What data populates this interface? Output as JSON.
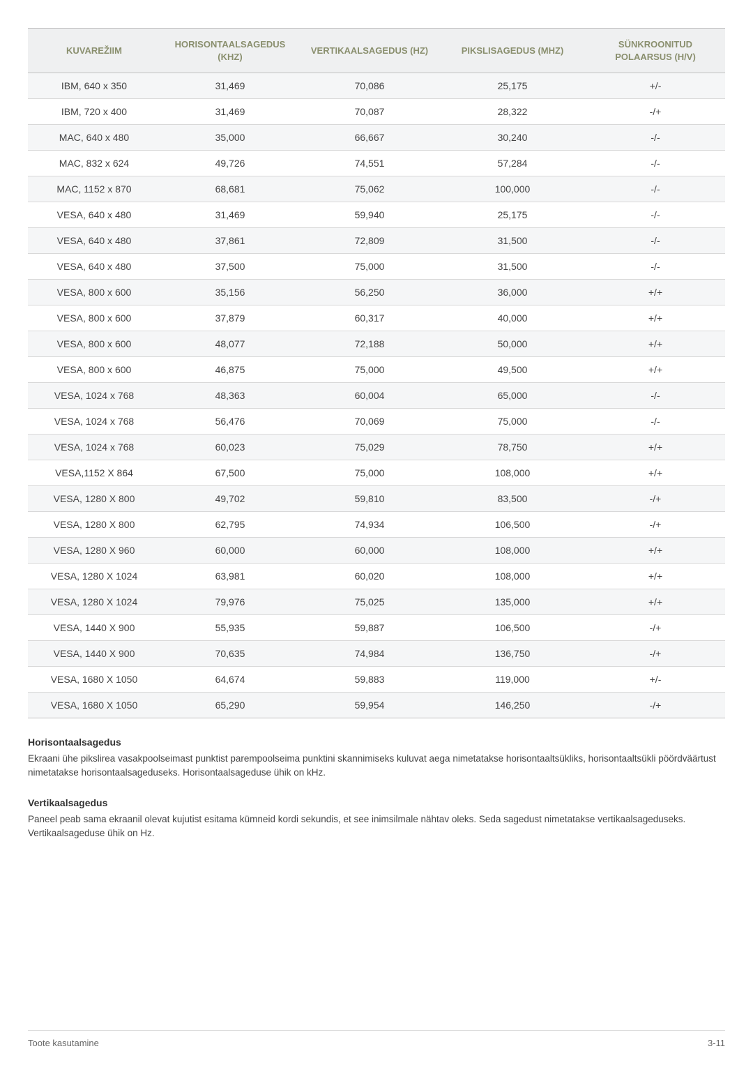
{
  "table": {
    "columns": [
      "KUVAREŽIIM",
      "HORISONTAALSAGEDUS (KHZ)",
      "VERTIKAALSAGEDUS (HZ)",
      "PIKSLISAGEDUS (MHZ)",
      "SÜNKROONITUD POLAARSUS (H/V)"
    ],
    "header_color": "#8a8f6e",
    "header_bg": "#eff0f1",
    "row_odd_bg": "#f5f6f7",
    "row_even_bg": "#ffffff",
    "border_color": "#d8d8d8",
    "text_color": "#444444",
    "fontsize_header": 13,
    "fontsize_cell": 14,
    "col_widths_pct": [
      19,
      20,
      20,
      21,
      20
    ],
    "rows": [
      [
        "IBM, 640 x 350",
        "31,469",
        "70,086",
        "25,175",
        "+/-"
      ],
      [
        "IBM, 720 x 400",
        "31,469",
        "70,087",
        "28,322",
        "-/+"
      ],
      [
        "MAC, 640 x 480",
        "35,000",
        "66,667",
        "30,240",
        "-/-"
      ],
      [
        "MAC, 832 x 624",
        "49,726",
        "74,551",
        "57,284",
        "-/-"
      ],
      [
        "MAC, 1152 x 870",
        "68,681",
        "75,062",
        "100,000",
        "-/-"
      ],
      [
        "VESA, 640 x 480",
        "31,469",
        "59,940",
        "25,175",
        "-/-"
      ],
      [
        "VESA, 640 x 480",
        "37,861",
        "72,809",
        "31,500",
        "-/-"
      ],
      [
        "VESA, 640 x 480",
        "37,500",
        "75,000",
        "31,500",
        "-/-"
      ],
      [
        "VESA, 800 x 600",
        "35,156",
        "56,250",
        "36,000",
        "+/+"
      ],
      [
        "VESA, 800 x 600",
        "37,879",
        "60,317",
        "40,000",
        "+/+"
      ],
      [
        "VESA, 800 x 600",
        "48,077",
        "72,188",
        "50,000",
        "+/+"
      ],
      [
        "VESA, 800 x 600",
        "46,875",
        "75,000",
        "49,500",
        "+/+"
      ],
      [
        "VESA, 1024 x 768",
        "48,363",
        "60,004",
        "65,000",
        "-/-"
      ],
      [
        "VESA, 1024 x 768",
        "56,476",
        "70,069",
        "75,000",
        "-/-"
      ],
      [
        "VESA, 1024 x 768",
        "60,023",
        "75,029",
        "78,750",
        "+/+"
      ],
      [
        "VESA,1152 X 864",
        "67,500",
        "75,000",
        "108,000",
        "+/+"
      ],
      [
        "VESA, 1280 X 800",
        "49,702",
        "59,810",
        "83,500",
        "-/+"
      ],
      [
        "VESA, 1280 X 800",
        "62,795",
        "74,934",
        "106,500",
        "-/+"
      ],
      [
        "VESA, 1280 X 960",
        "60,000",
        "60,000",
        "108,000",
        "+/+"
      ],
      [
        "VESA, 1280 X 1024",
        "63,981",
        "60,020",
        "108,000",
        "+/+"
      ],
      [
        "VESA, 1280 X 1024",
        "79,976",
        "75,025",
        "135,000",
        "+/+"
      ],
      [
        "VESA, 1440 X 900",
        "55,935",
        "59,887",
        "106,500",
        "-/+"
      ],
      [
        "VESA, 1440 X 900",
        "70,635",
        "74,984",
        "136,750",
        "-/+"
      ],
      [
        "VESA, 1680 X 1050",
        "64,674",
        "59,883",
        "119,000",
        "+/-"
      ],
      [
        "VESA, 1680 X 1050",
        "65,290",
        "59,954",
        "146,250",
        "-/+"
      ]
    ]
  },
  "sections": {
    "s1_heading": "Horisontaalsagedus",
    "s1_body": "Ekraani ühe pikslirea vasakpoolseimast punktist parempoolseima punktini skannimiseks kuluvat aega nimetatakse horisontaaltsükliks, horisontaaltsükli pöördväärtust nimetatakse horisontaalsageduseks. Horisontaalsageduse ühik on kHz.",
    "s2_heading": "Vertikaalsagedus",
    "s2_body": "Paneel peab sama ekraanil olevat kujutist esitama kümneid kordi sekundis, et see inimsilmale nähtav oleks. Seda sagedust nimetatakse vertikaalsageduseks. Vertikaalsageduse ühik on Hz."
  },
  "footer": {
    "left": "Toote kasutamine",
    "right": "3-11"
  }
}
